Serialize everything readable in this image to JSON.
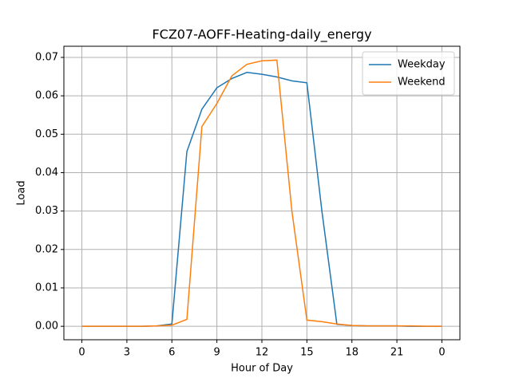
{
  "chart_data": {
    "type": "line",
    "title": "FCZ07-AOFF-Heating-daily_energy",
    "x_label": "Hour of Day",
    "y_label": "Load",
    "x": [
      0,
      1,
      2,
      3,
      4,
      5,
      6,
      7,
      8,
      9,
      10,
      11,
      12,
      13,
      14,
      15,
      16,
      17,
      18,
      19,
      20,
      21,
      22,
      23,
      24
    ],
    "series": [
      {
        "name": "Weekday",
        "color": "#1f77b4",
        "values": [
          0,
          0,
          0,
          0,
          0,
          0.0001,
          0.0006,
          0.0455,
          0.0565,
          0.0621,
          0.0645,
          0.0661,
          0.0656,
          0.0649,
          0.0639,
          0.0634,
          0.03,
          0.0005,
          0.0002,
          0.0001,
          0.0001,
          0.0001,
          0,
          0,
          0
        ]
      },
      {
        "name": "Weekend",
        "color": "#ff7f0e",
        "values": [
          0,
          0,
          0,
          0,
          0,
          0.0001,
          0.0003,
          0.0018,
          0.052,
          0.058,
          0.0652,
          0.0682,
          0.0691,
          0.0693,
          0.03,
          0.0016,
          0.0012,
          0.0006,
          0.0002,
          0.0001,
          0.0001,
          0.0001,
          0.0001,
          0,
          0
        ]
      }
    ],
    "xlim": [
      -1.2,
      25.2
    ],
    "xticks": [
      0,
      3,
      6,
      9,
      12,
      15,
      18,
      21,
      {
        "value": 24,
        "label": "0"
      }
    ],
    "ylim": [
      -0.0035,
      0.0729
    ],
    "yticks": [
      {
        "value": 0,
        "label": "0.00"
      },
      0.01,
      0.02,
      0.03,
      0.04,
      0.05,
      0.06,
      0.07
    ],
    "grid": true,
    "legend": "upper right"
  }
}
